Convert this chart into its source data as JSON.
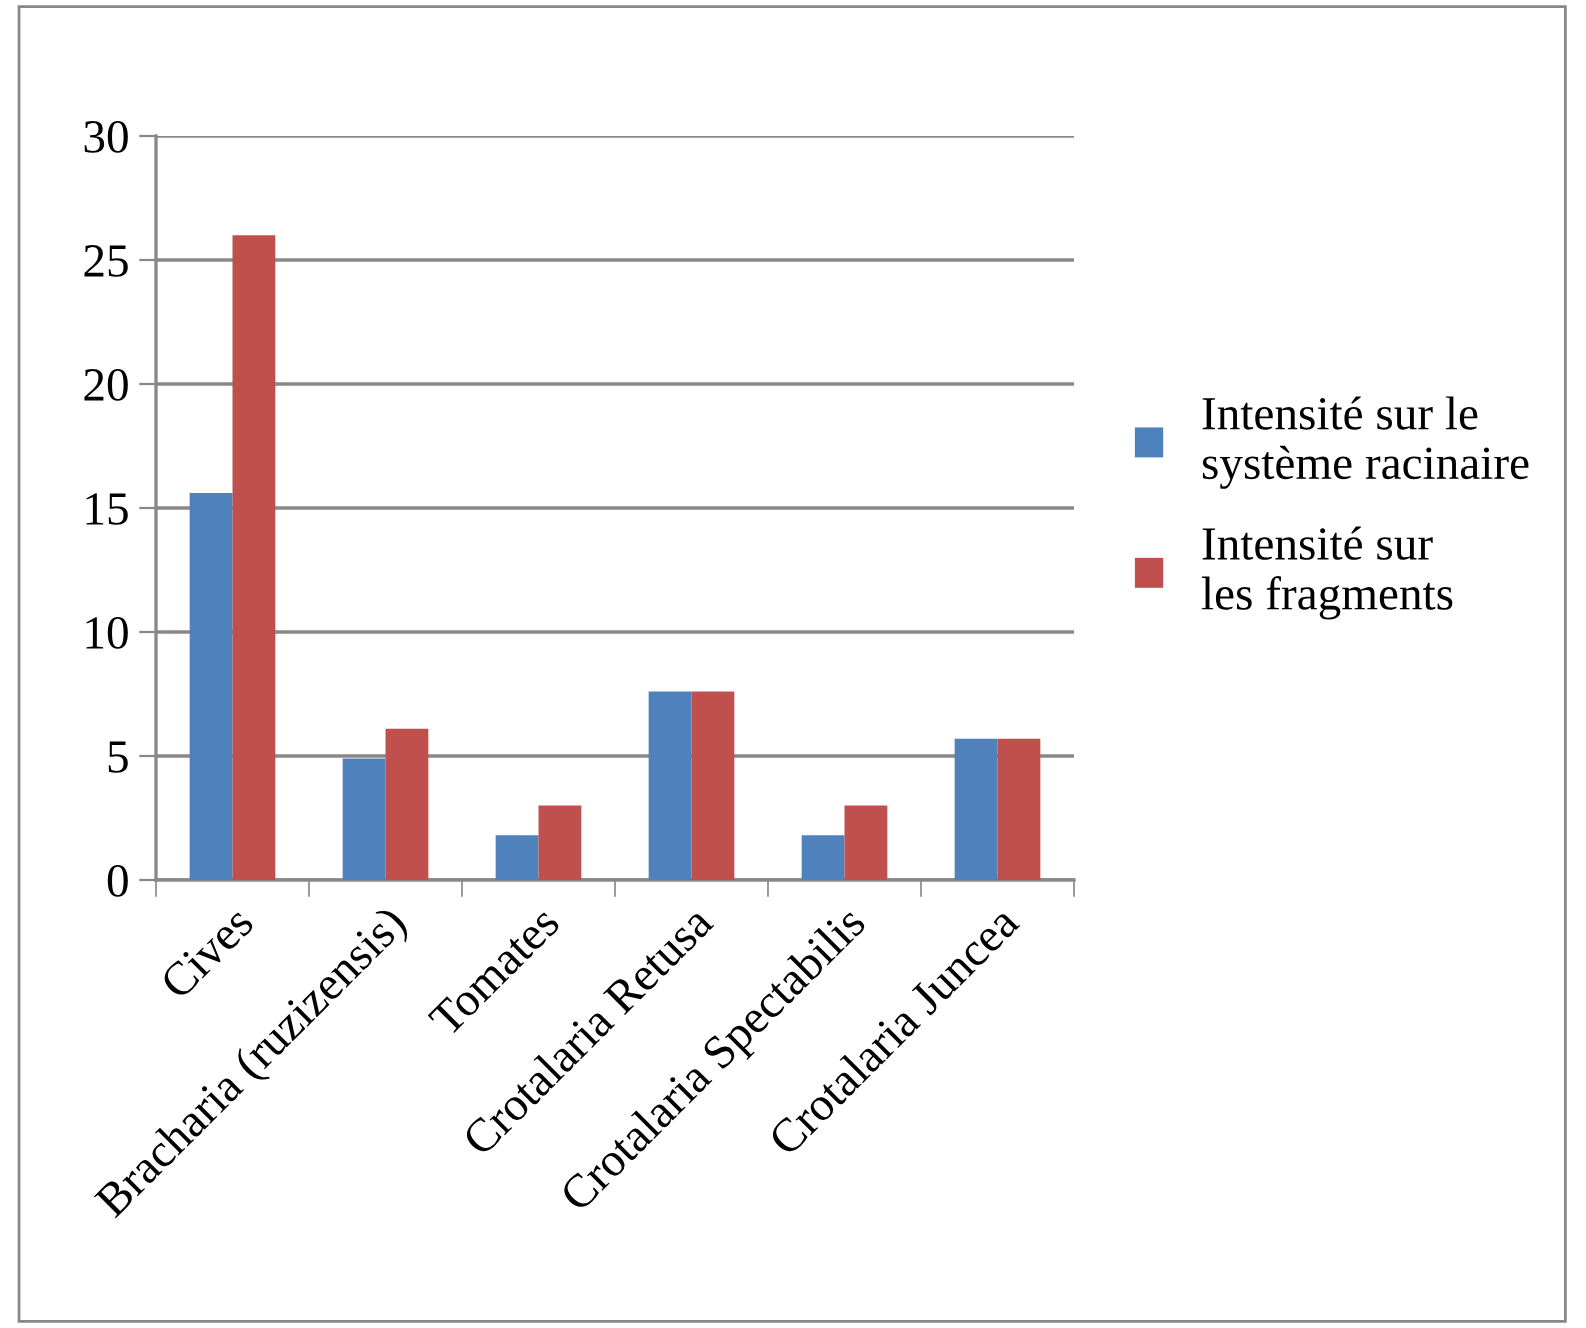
{
  "chart_data": {
    "type": "bar",
    "categories": [
      "Cives",
      "Bracharia (ruzizensis)",
      "Tomates",
      "Crotalaria Retusa",
      "Crotalaria Spectabilis",
      "Crotalaria Juncea"
    ],
    "series": [
      {
        "name": "Intensité sur le système racinaire",
        "color": "#4f81bd",
        "values": [
          15.6,
          4.9,
          1.8,
          7.6,
          1.8,
          5.7
        ]
      },
      {
        "name": "Intensité sur les fragments",
        "color": "#c0504d",
        "values": [
          26,
          6.1,
          3.0,
          7.6,
          3.0,
          5.7
        ]
      }
    ],
    "ylim": [
      0,
      30
    ],
    "yticks": [
      0,
      5,
      10,
      15,
      20,
      25,
      30
    ],
    "grid": "y",
    "legend": "right"
  }
}
